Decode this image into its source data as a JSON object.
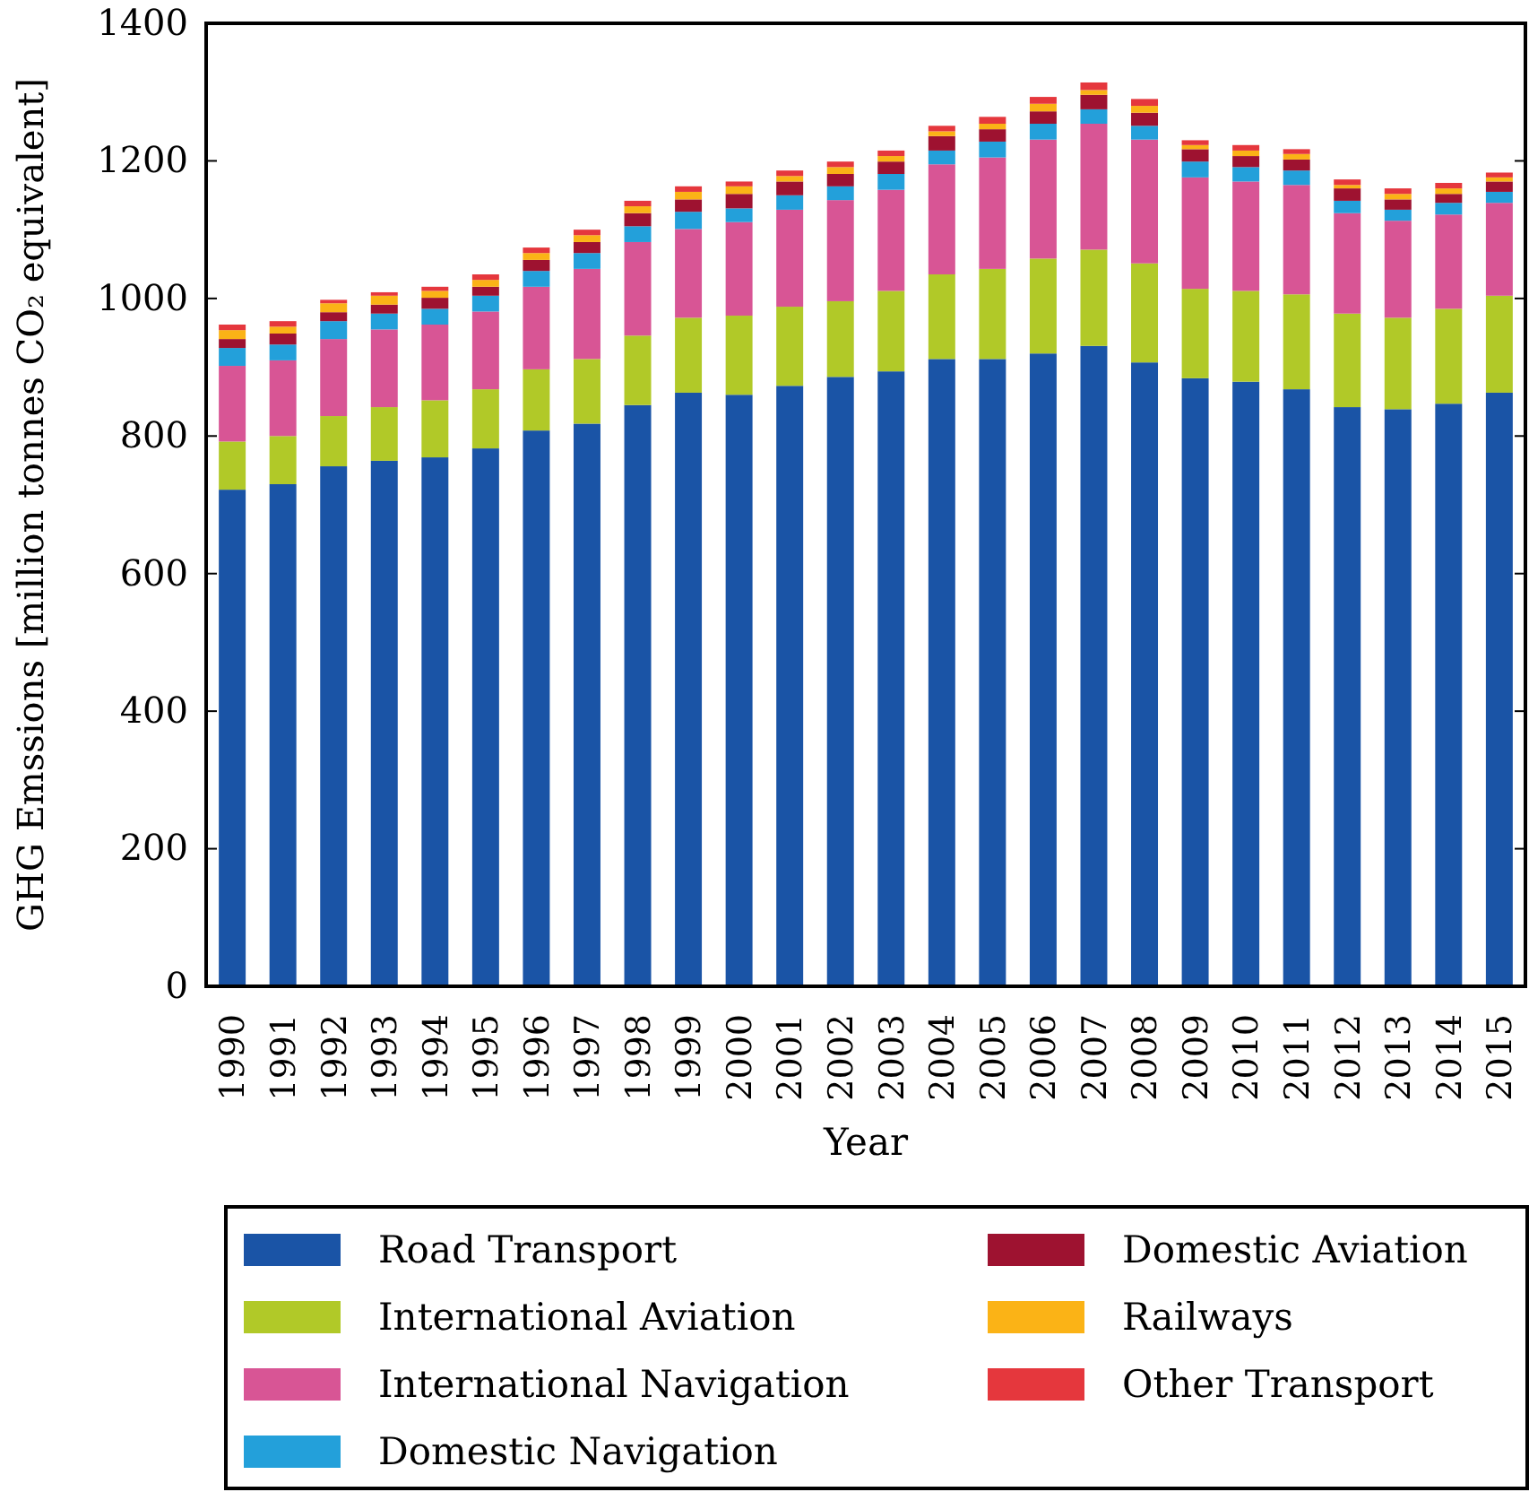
{
  "chart_data": {
    "type": "bar",
    "stacked": true,
    "xlabel": "Year",
    "ylabel": "GHG Emssions [million tonnes CO₂ equivalent]",
    "categories": [
      "1990",
      "1991",
      "1992",
      "1993",
      "1994",
      "1995",
      "1996",
      "1997",
      "1998",
      "1999",
      "2000",
      "2001",
      "2002",
      "2003",
      "2004",
      "2005",
      "2006",
      "2007",
      "2008",
      "2009",
      "2010",
      "2011",
      "2012",
      "2013",
      "2014",
      "2015"
    ],
    "series": [
      {
        "name": "Road Transport",
        "color": "#1a54a6",
        "values": [
          722,
          730,
          756,
          764,
          769,
          782,
          808,
          818,
          845,
          863,
          860,
          873,
          886,
          894,
          912,
          912,
          920,
          931,
          907,
          884,
          879,
          868,
          842,
          839,
          847,
          863
        ]
      },
      {
        "name": "International Aviation",
        "color": "#b1c928",
        "values": [
          70,
          70,
          73,
          78,
          83,
          86,
          89,
          94,
          101,
          109,
          115,
          115,
          110,
          117,
          123,
          131,
          138,
          140,
          144,
          130,
          132,
          138,
          136,
          133,
          138,
          141
        ]
      },
      {
        "name": "International Navigation",
        "color": "#d85595",
        "values": [
          110,
          110,
          112,
          113,
          110,
          113,
          120,
          131,
          136,
          129,
          136,
          141,
          147,
          147,
          160,
          162,
          173,
          183,
          180,
          162,
          159,
          159,
          146,
          141,
          137,
          135
        ]
      },
      {
        "name": "Domestic Navigation",
        "color": "#23a0da",
        "values": [
          26,
          23,
          26,
          23,
          23,
          23,
          23,
          23,
          23,
          25,
          20,
          21,
          20,
          23,
          20,
          23,
          23,
          21,
          20,
          23,
          21,
          21,
          18,
          16,
          17,
          16
        ]
      },
      {
        "name": "Domestic Aviation",
        "color": "#9e1230",
        "values": [
          13,
          16,
          13,
          13,
          16,
          13,
          16,
          16,
          19,
          18,
          21,
          20,
          18,
          18,
          21,
          18,
          18,
          21,
          19,
          18,
          16,
          16,
          18,
          15,
          13,
          15
        ]
      },
      {
        "name": "Railways",
        "color": "#fbb316",
        "values": [
          13,
          10,
          13,
          13,
          10,
          10,
          10,
          10,
          10,
          11,
          11,
          8,
          10,
          8,
          7,
          8,
          11,
          7,
          10,
          6,
          8,
          8,
          5,
          8,
          8,
          6
        ]
      },
      {
        "name": "Other Transport",
        "color": "#e5373d",
        "values": [
          8,
          8,
          5,
          5,
          6,
          8,
          8,
          8,
          8,
          8,
          7,
          8,
          8,
          8,
          8,
          10,
          10,
          11,
          10,
          7,
          8,
          7,
          8,
          8,
          8,
          7
        ]
      }
    ],
    "ylim": [
      0,
      1400
    ],
    "yticks": [
      0,
      200,
      400,
      600,
      800,
      1000,
      1200,
      1400
    ],
    "grid": false,
    "legend": "bottom"
  }
}
